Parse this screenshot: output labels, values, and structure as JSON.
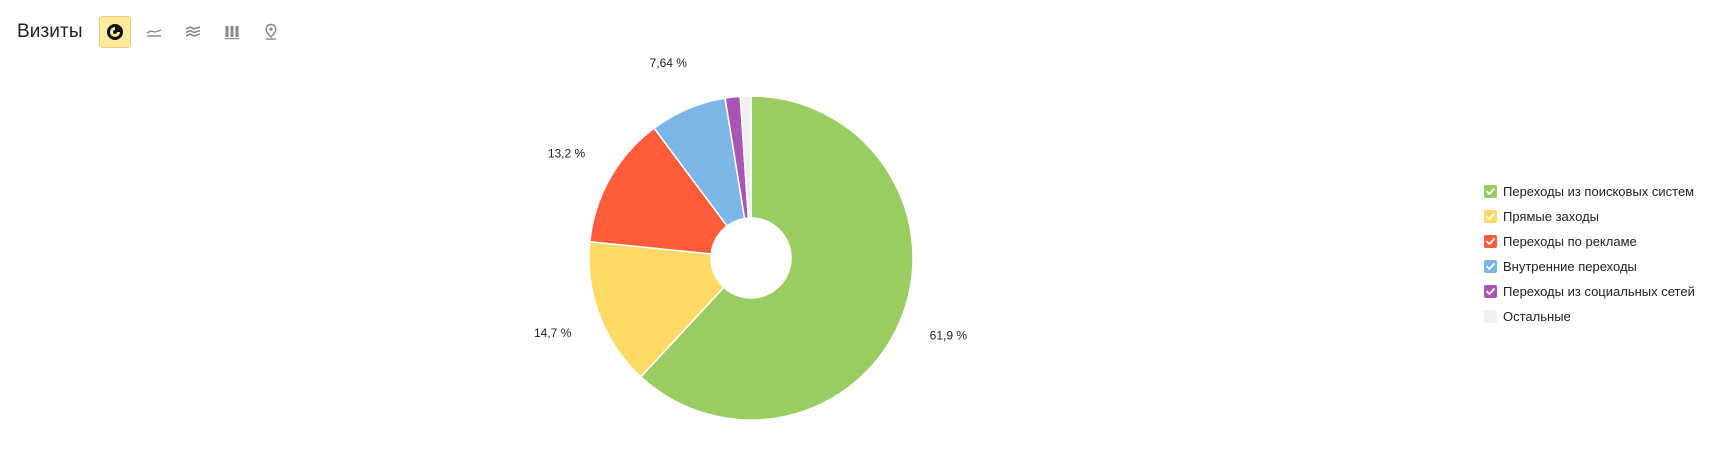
{
  "header": {
    "title": "Визиты",
    "toolbar": [
      {
        "icon": "pie-chart-icon",
        "active": true
      },
      {
        "icon": "line-chart-icon",
        "active": false
      },
      {
        "icon": "area-chart-icon",
        "active": false
      },
      {
        "icon": "bar-chart-icon",
        "active": false
      },
      {
        "icon": "map-pin-icon",
        "active": false
      }
    ]
  },
  "chart_data": {
    "type": "pie",
    "title": "",
    "slices": [
      {
        "name": "Переходы из поисковых систем",
        "value": 61.9,
        "label": "61,9 %",
        "color": "#9bcc62",
        "checked": true
      },
      {
        "name": "Прямые заходы",
        "value": 14.7,
        "label": "14,7 %",
        "color": "#ffd966",
        "checked": true
      },
      {
        "name": "Переходы по рекламе",
        "value": 13.2,
        "label": "13,2 %",
        "color": "#ff5c3c",
        "checked": true
      },
      {
        "name": "Внутренние переходы",
        "value": 7.64,
        "label": "7,64 %",
        "color": "#7cb5e8",
        "checked": true
      },
      {
        "name": "Переходы из социальных сетей",
        "value": 1.5,
        "label": "",
        "color": "#a855b8",
        "checked": true
      },
      {
        "name": "Остальные",
        "value": 1.06,
        "label": "",
        "color": "#efefef",
        "checked": false
      }
    ],
    "legend_position": "right"
  }
}
